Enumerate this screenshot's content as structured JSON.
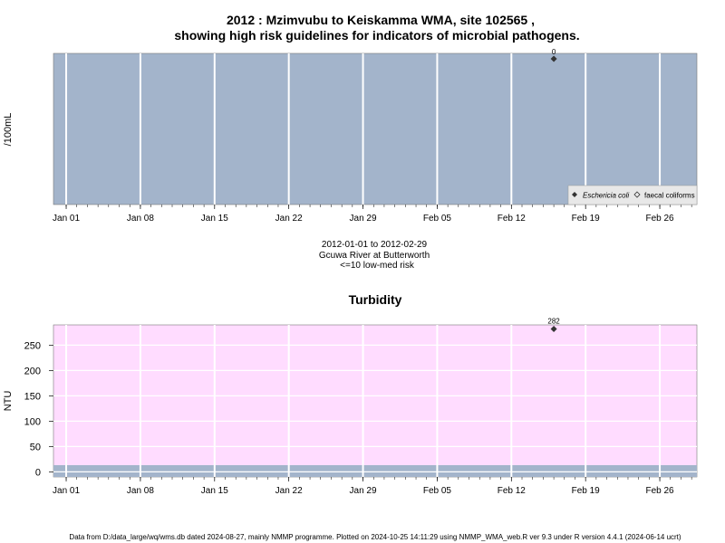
{
  "figure": {
    "title_line1": "2012 : Mzimvubu to Keiskamma WMA, site 102565 ,",
    "title_line2": "showing high risk guidelines for indicators of microbial pathogens.",
    "caption_line1": "2012-01-01 to 2012-02-29",
    "caption_line2": "Gcuwa River at Butterworth",
    "caption_line3": "<=10 low-med risk",
    "footer": "Data from D:/data_large/wq/wms.db dated 2024-08-27, mainly NMMP programme. Plotted on 2024-10-25 14:11:29 using NMMP_WMA_web.R ver 9.3 under R version 4.4.1 (2024-06-14 ucrt)"
  },
  "colors": {
    "panel1_bg": "#a3b4cb",
    "panel2_bg": "#ffdcff",
    "low_band": "#a3b4cb",
    "grid": "#ffffff",
    "point": "#333333"
  },
  "chart_data": [
    {
      "type": "scatter",
      "title": "",
      "ylabel": "/100mL",
      "xlabel": "",
      "xlim": [
        "2012-01-01",
        "2012-02-29"
      ],
      "x_ticks": [
        "Jan 01",
        "Jan 08",
        "Jan 15",
        "Jan 22",
        "Jan 29",
        "Feb 05",
        "Feb 12",
        "Feb 19",
        "Feb 26"
      ],
      "x_tick_dates": [
        "2012-01-01",
        "2012-01-08",
        "2012-01-15",
        "2012-01-22",
        "2012-01-29",
        "2012-02-05",
        "2012-02-12",
        "2012-02-19",
        "2012-02-26"
      ],
      "grid": true,
      "legend_position": "bottom-right",
      "series": [
        {
          "name": "Eschericia coli",
          "marker": "filled-diamond",
          "points": [
            {
              "x": "2012-02-16",
              "y": 0,
              "label": "0"
            }
          ]
        },
        {
          "name": "faecal coliforms",
          "marker": "open-diamond",
          "points": []
        }
      ]
    },
    {
      "type": "scatter",
      "title": "Turbidity",
      "ylabel": "NTU",
      "xlabel": "",
      "xlim": [
        "2012-01-01",
        "2012-02-29"
      ],
      "ylim": [
        -10,
        290
      ],
      "y_ticks": [
        0,
        50,
        100,
        150,
        200,
        250
      ],
      "x_ticks": [
        "Jan 01",
        "Jan 08",
        "Jan 15",
        "Jan 22",
        "Jan 29",
        "Feb 05",
        "Feb 12",
        "Feb 19",
        "Feb 26"
      ],
      "x_tick_dates": [
        "2012-01-01",
        "2012-01-08",
        "2012-01-15",
        "2012-01-22",
        "2012-01-29",
        "2012-02-05",
        "2012-02-12",
        "2012-02-19",
        "2012-02-26"
      ],
      "grid": true,
      "bands": [
        {
          "from": -10,
          "to": 1,
          "meaning": "low risk"
        }
      ],
      "series": [
        {
          "name": "Turbidity",
          "marker": "filled-diamond",
          "points": [
            {
              "x": "2012-02-16",
              "y": 282,
              "label": "282"
            }
          ]
        }
      ]
    }
  ]
}
